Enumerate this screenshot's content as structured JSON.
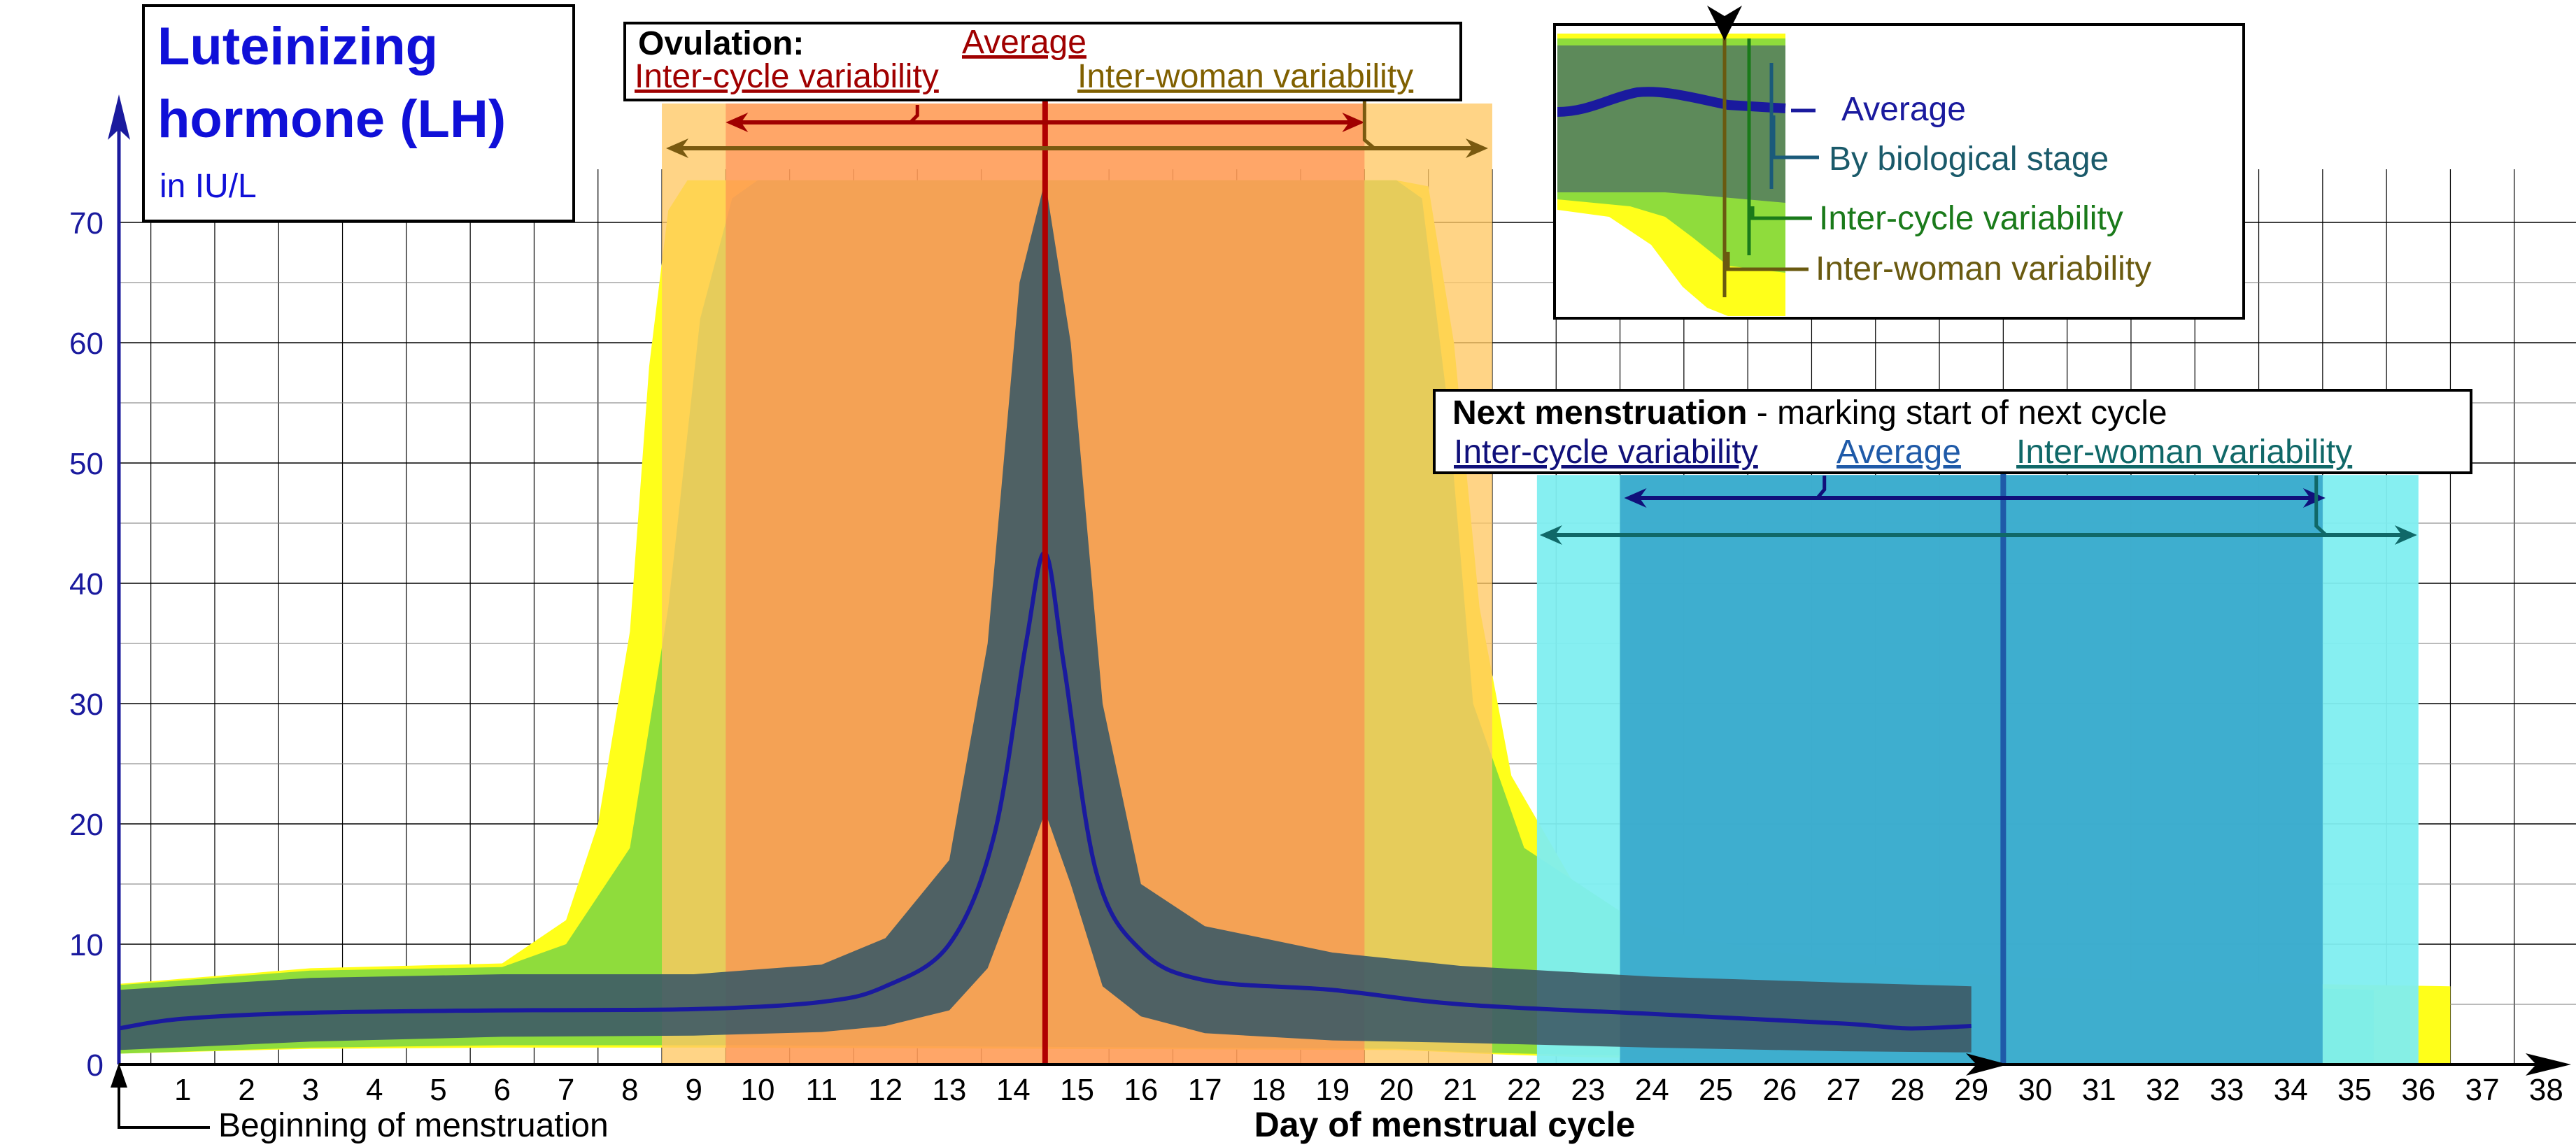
{
  "title": {
    "line1": "Luteinizing",
    "line2": "hormone (LH)",
    "unit": "in IU/L"
  },
  "xlabel": "Day of menstrual cycle",
  "beginning_label": "Beginning of menstruation",
  "ovulation_box": {
    "heading": "Ovulation:",
    "average": "Average",
    "inter_cycle": "Inter-cycle variability",
    "inter_woman": "Inter-woman variability"
  },
  "menstruation_box": {
    "heading": "Next menstruation",
    "heading_rest": " - marking start of next cycle",
    "inter_cycle": "Inter-cycle variability",
    "average": "Average",
    "inter_woman": "Inter-woman variability"
  },
  "legend": {
    "average": "Average",
    "biological": "By biological stage",
    "inter_cycle": "Inter-cycle variability",
    "inter_woman": "Inter-woman variability"
  },
  "colors": {
    "average_line": "#1a1a9e",
    "biological_band": "#3d5a66",
    "inter_cycle_band": "#8fdc3c",
    "inter_woman_band": "#ffff1a",
    "ovulation_inter_woman": "#ffc864",
    "ovulation_inter_cycle": "#ff8050",
    "menstruation_inter_woman": "#80eef0",
    "menstruation_inter_cycle": "#3aaacc",
    "ovulation_average": "#b00000",
    "menstruation_average": "#1f5aa8"
  },
  "chart_data": {
    "type": "area",
    "xlabel": "Day of menstrual cycle",
    "ylabel": "in IU/L",
    "xlim": [
      0,
      40
    ],
    "ylim": [
      0,
      75
    ],
    "x_ticks": [
      1,
      2,
      3,
      4,
      5,
      6,
      7,
      8,
      9,
      10,
      11,
      12,
      13,
      14,
      15,
      16,
      17,
      18,
      19,
      20,
      21,
      22,
      23,
      24,
      25,
      26,
      27,
      28,
      29,
      30,
      31,
      32,
      33,
      34,
      35,
      36,
      37,
      38
    ],
    "y_ticks": [
      0,
      10,
      20,
      30,
      40,
      50,
      60,
      70
    ],
    "average": {
      "x": [
        0,
        1,
        3,
        6,
        9,
        11,
        12,
        13,
        13.7,
        14.2,
        14.5,
        14.8,
        15.3,
        16,
        17,
        19,
        21,
        24,
        27,
        28,
        29
      ],
      "y": [
        3,
        3.8,
        4.3,
        4.5,
        4.6,
        5.2,
        6.5,
        10,
        19,
        35,
        42.5,
        33,
        16,
        9.5,
        7,
        6.2,
        5,
        4.2,
        3.4,
        3,
        3.2
      ]
    },
    "biological_band": {
      "x": [
        0,
        3,
        6,
        9,
        11,
        12,
        13,
        13.6,
        14.1,
        14.5,
        14.9,
        15.4,
        16,
        17,
        19,
        21,
        24,
        27,
        29
      ],
      "upper": [
        6.2,
        7.2,
        7.5,
        7.5,
        8.3,
        10.5,
        17,
        35,
        65,
        73.5,
        60,
        30,
        15,
        11.5,
        9.3,
        8.2,
        7.3,
        6.8,
        6.5
      ],
      "lower": [
        1.2,
        1.9,
        2.3,
        2.4,
        2.7,
        3.2,
        4.5,
        8,
        15,
        21,
        15,
        6.5,
        4,
        2.6,
        2,
        1.8,
        1.4,
        1.1,
        1
      ]
    },
    "inter_cycle_band": {
      "x": [
        0,
        3,
        6,
        7,
        8,
        8.6,
        9.1,
        9.6,
        10,
        20,
        20.4,
        20.8,
        21.2,
        22,
        24,
        27,
        30,
        33,
        35.3
      ],
      "upper": [
        6.6,
        7.8,
        8.1,
        10,
        18,
        38,
        62,
        72,
        73.5,
        73.5,
        72,
        55,
        30,
        18,
        11,
        8.5,
        7,
        6.5,
        6.2
      ],
      "lower": [
        0.9,
        1.4,
        1.6,
        1.6,
        1.6,
        1.6,
        1.6,
        1.6,
        1.6,
        1.3,
        1.2,
        1.1,
        1,
        0.9,
        0.7,
        0.5,
        0.4,
        0.3,
        0.2
      ]
    },
    "inter_woman_band": {
      "x": [
        0,
        3,
        6,
        7,
        7.5,
        8,
        8.3,
        8.6,
        8.9,
        9.3,
        20,
        20.5,
        20.9,
        21.3,
        21.8,
        23,
        26,
        30,
        33,
        36.5
      ],
      "upper": [
        6.7,
        8,
        8.4,
        12,
        20,
        36,
        58,
        71,
        73.5,
        73.5,
        73.5,
        73,
        60,
        38,
        24,
        13,
        8.5,
        7.2,
        6.8,
        6.5
      ],
      "lower": [
        0.9,
        1.3,
        1.4,
        1.4,
        1.4,
        1.4,
        1.4,
        1.4,
        1.4,
        1.4,
        1.2,
        1.1,
        1,
        0.9,
        0.8,
        0.6,
        0.4,
        0.2,
        0.1,
        0
      ]
    },
    "ovulation": {
      "average_day": 15,
      "inter_cycle_range": [
        10,
        20
      ],
      "inter_woman_range": [
        9,
        21
      ]
    },
    "next_menstruation": {
      "average_day": 29.5,
      "inter_cycle_range": [
        24,
        35
      ],
      "inter_woman_range": [
        22.7,
        36.5
      ]
    }
  }
}
